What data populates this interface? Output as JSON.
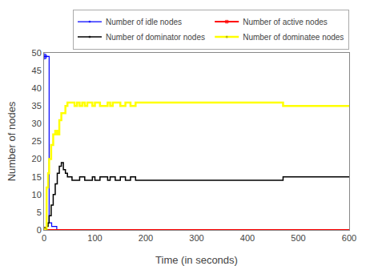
{
  "chart_data": {
    "type": "step",
    "xlabel": "Time (in seconds)",
    "ylabel": "Number of nodes",
    "xlim": [
      0,
      600
    ],
    "ylim": [
      0,
      50
    ],
    "xticks": [
      0,
      100,
      200,
      300,
      400,
      500,
      600
    ],
    "yticks": [
      0,
      5,
      10,
      15,
      20,
      25,
      30,
      35,
      40,
      45,
      50
    ],
    "grid": false,
    "legend": "upper right",
    "series": [
      {
        "name": "Number of idle nodes",
        "color": "blue",
        "marker": "circle",
        "x": [
          0,
          10,
          15,
          20,
          25,
          30,
          35,
          40,
          42,
          44,
          46,
          48,
          600
        ],
        "values": [
          49,
          2,
          1,
          1,
          0,
          0,
          0,
          0,
          0,
          0,
          0,
          0,
          0
        ]
      },
      {
        "name": "Number of active nodes",
        "color": "red",
        "marker": "square",
        "x": [
          0,
          600
        ],
        "values": [
          0,
          0
        ]
      },
      {
        "name": "Number of dominator nodes",
        "color": "black",
        "marker": "circle",
        "x": [
          0,
          5,
          8,
          10,
          14,
          18,
          22,
          26,
          30,
          34,
          38,
          42,
          46,
          50,
          55,
          60,
          65,
          70,
          75,
          80,
          85,
          90,
          95,
          100,
          110,
          120,
          125,
          130,
          135,
          140,
          150,
          160,
          170,
          180,
          190,
          460,
          470,
          480,
          600
        ],
        "values": [
          0,
          1,
          2,
          4,
          7,
          10,
          13,
          16,
          18,
          19,
          17,
          16,
          15,
          15,
          14,
          14,
          14,
          15,
          15,
          14,
          14,
          14,
          15,
          14,
          15,
          15,
          14,
          15,
          15,
          14,
          15,
          14,
          15,
          14,
          14,
          14,
          15,
          15,
          15
        ]
      },
      {
        "name": "Number of dominatee nodes",
        "color": "yellow",
        "marker": "circle",
        "x": [
          0,
          5,
          8,
          10,
          14,
          18,
          22,
          26,
          30,
          34,
          38,
          42,
          46,
          50,
          55,
          60,
          65,
          70,
          75,
          80,
          85,
          90,
          95,
          100,
          110,
          120,
          125,
          130,
          135,
          140,
          150,
          160,
          170,
          180,
          190,
          460,
          470,
          480,
          600
        ],
        "values": [
          0,
          12,
          16,
          20,
          24,
          27,
          28,
          27,
          31,
          33,
          33,
          35,
          36,
          36,
          36,
          35,
          36,
          35,
          36,
          35,
          36,
          36,
          35,
          36,
          35,
          35,
          36,
          35,
          36,
          36,
          35,
          36,
          35,
          36,
          36,
          36,
          35,
          35,
          35
        ]
      }
    ]
  }
}
